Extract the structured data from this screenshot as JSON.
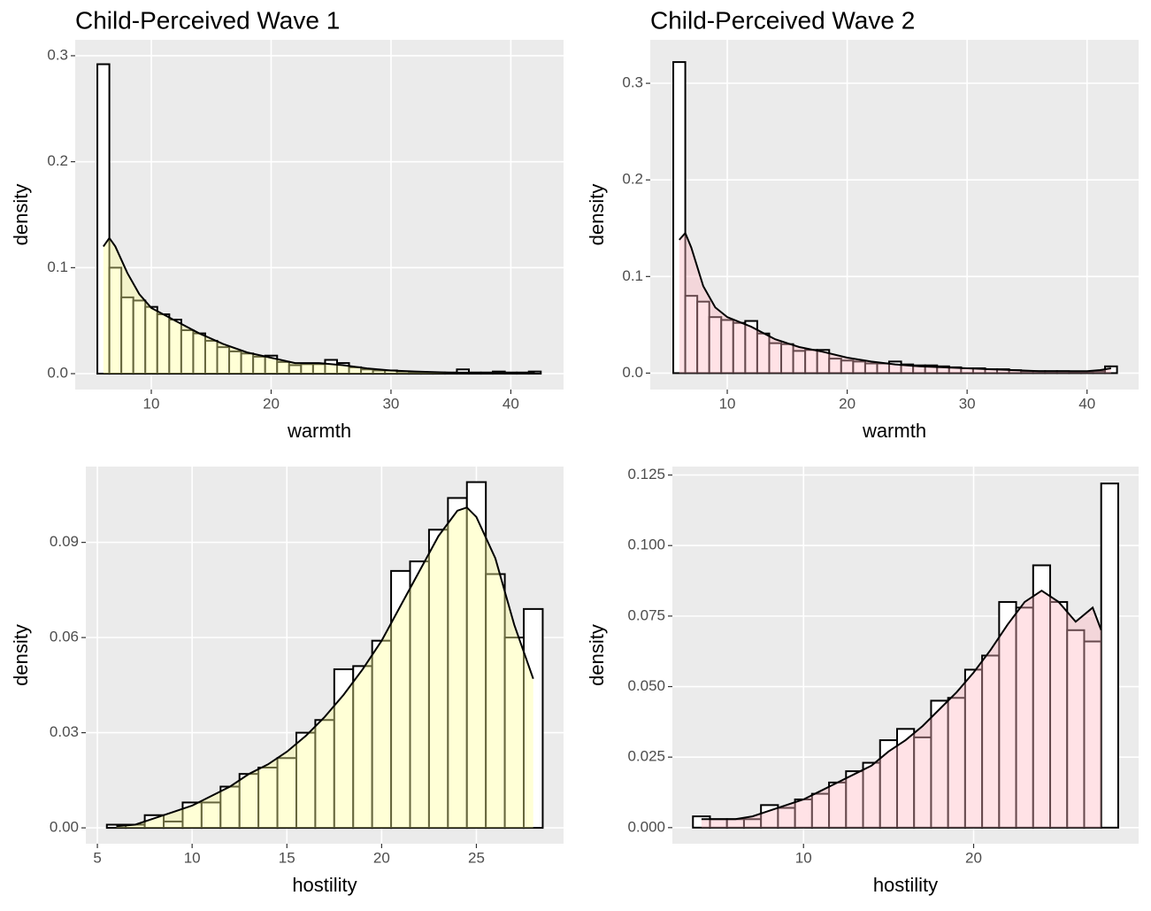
{
  "chart_data": [
    {
      "type": "histogram",
      "title": "Child-Perceived Wave 1",
      "xlabel": "warmth",
      "ylabel": "density",
      "bins": [
        5.5,
        6.5,
        7.5,
        8.5,
        9.5,
        10.5,
        11.5,
        12.5,
        13.5,
        14.5,
        15.5,
        16.5,
        17.5,
        18.5,
        19.5,
        20.5,
        21.5,
        22.5,
        23.5,
        24.5,
        25.5,
        26.5,
        27.5,
        28.5,
        29.5,
        30.5,
        31.5,
        32.5,
        33.5,
        34.5,
        35.5,
        36.5,
        37.5,
        38.5,
        39.5,
        40.5,
        41.5,
        42.5
      ],
      "values": [
        0.292,
        0.1,
        0.072,
        0.069,
        0.063,
        0.056,
        0.051,
        0.041,
        0.038,
        0.031,
        0.025,
        0.021,
        0.019,
        0.016,
        0.017,
        0.011,
        0.008,
        0.009,
        0.009,
        0.013,
        0.01,
        0.006,
        0.004,
        0.003,
        0.003,
        0.002,
        0.001,
        0.001,
        0.001,
        0.001,
        0.004,
        0.001,
        0.001,
        0.002,
        0.001,
        0.001,
        0.002
      ],
      "density": {
        "x": [
          6,
          6.5,
          7,
          8,
          9,
          10,
          12,
          14,
          16,
          18,
          20,
          22,
          24,
          26,
          28,
          30,
          32,
          35,
          38,
          42
        ],
        "y": [
          0.12,
          0.128,
          0.12,
          0.095,
          0.075,
          0.062,
          0.05,
          0.038,
          0.028,
          0.02,
          0.015,
          0.01,
          0.01,
          0.008,
          0.005,
          0.003,
          0.002,
          0.001,
          0.001,
          0.001
        ]
      },
      "bar_color": "#ffffff",
      "outline_color": "#000000",
      "density_color": "#ffff99",
      "xlim": [
        3.65,
        44.4
      ],
      "ylim": [
        -0.015,
        0.315
      ],
      "xticks": [
        10,
        20,
        30,
        40
      ],
      "yticks": [
        {
          "value": 0,
          "label": "0.0"
        },
        0.1,
        0.2,
        0.3
      ],
      "grid": true
    },
    {
      "type": "histogram",
      "title": "Child-Perceived Wave 2",
      "xlabel": "warmth",
      "ylabel": "density",
      "bins": [
        5.5,
        6.5,
        7.5,
        8.5,
        9.5,
        10.5,
        11.5,
        12.5,
        13.5,
        14.5,
        15.5,
        16.5,
        17.5,
        18.5,
        19.5,
        20.5,
        21.5,
        22.5,
        23.5,
        24.5,
        25.5,
        26.5,
        27.5,
        28.5,
        29.5,
        30.5,
        31.5,
        32.5,
        33.5,
        34.5,
        35.5,
        36.5,
        37.5,
        38.5,
        39.5,
        40.5,
        41.5,
        42.5
      ],
      "values": [
        0.322,
        0.08,
        0.074,
        0.058,
        0.055,
        0.052,
        0.054,
        0.041,
        0.031,
        0.03,
        0.023,
        0.024,
        0.024,
        0.015,
        0.013,
        0.012,
        0.01,
        0.01,
        0.012,
        0.009,
        0.008,
        0.008,
        0.007,
        0.006,
        0.005,
        0.005,
        0.004,
        0.004,
        0.003,
        0.002,
        0.002,
        0.002,
        0.002,
        0.001,
        0.001,
        0.002,
        0.007
      ],
      "density": {
        "x": [
          6,
          6.5,
          7,
          8,
          9,
          10,
          12,
          14,
          16,
          18,
          20,
          22,
          24,
          26,
          28,
          30,
          32,
          34,
          36,
          38,
          40,
          41,
          42
        ],
        "y": [
          0.138,
          0.145,
          0.13,
          0.09,
          0.068,
          0.058,
          0.048,
          0.035,
          0.027,
          0.022,
          0.016,
          0.012,
          0.009,
          0.007,
          0.006,
          0.005,
          0.004,
          0.003,
          0.002,
          0.002,
          0.002,
          0.003,
          0.005
        ]
      },
      "bar_color": "#ffffff",
      "outline_color": "#000000",
      "density_color": "#ffb6c1",
      "xlim": [
        3.58,
        44.3
      ],
      "ylim": [
        -0.017,
        0.345
      ],
      "xticks": [
        10,
        20,
        30,
        40
      ],
      "yticks": [
        {
          "value": 0,
          "label": "0.0"
        },
        0.1,
        0.2,
        0.3
      ],
      "grid": true
    },
    {
      "type": "histogram",
      "xlabel": "hostility",
      "ylabel": "density",
      "bins": [
        5.5,
        6.5,
        7.5,
        8.5,
        9.5,
        10.5,
        11.5,
        12.5,
        13.5,
        14.5,
        15.5,
        16.5,
        17.5,
        18.5,
        19.5,
        20.5,
        21.5,
        22.5,
        23.5,
        24.5,
        25.5,
        26.5,
        27.5,
        28.5
      ],
      "values": [
        0.001,
        0.001,
        0.004,
        0.002,
        0.008,
        0.008,
        0.013,
        0.017,
        0.019,
        0.022,
        0.03,
        0.034,
        0.05,
        0.051,
        0.059,
        0.081,
        0.084,
        0.094,
        0.104,
        0.109,
        0.08,
        0.06,
        0.069
      ],
      "density": {
        "x": [
          6,
          7,
          8,
          9,
          10,
          11,
          12,
          13,
          14,
          15,
          16,
          17,
          18,
          19,
          20,
          21,
          22,
          23,
          24,
          24.5,
          25,
          26,
          27,
          28
        ],
        "y": [
          0.0005,
          0.001,
          0.003,
          0.005,
          0.007,
          0.01,
          0.013,
          0.017,
          0.02,
          0.024,
          0.029,
          0.035,
          0.042,
          0.05,
          0.059,
          0.07,
          0.081,
          0.092,
          0.1,
          0.101,
          0.098,
          0.085,
          0.064,
          0.047
        ]
      },
      "bar_color": "#ffffff",
      "outline_color": "#000000",
      "density_color": "#ffff99",
      "xlim": [
        4.39,
        29.6
      ],
      "ylim": [
        -0.005,
        0.1139
      ],
      "xticks": [
        5,
        10,
        15,
        20,
        25
      ],
      "yticks": [
        {
          "value": 0,
          "label": "0.00"
        },
        0.03,
        0.06,
        0.09
      ],
      "grid": true
    },
    {
      "type": "histogram",
      "xlabel": "hostility",
      "ylabel": "density",
      "bins": [
        3.5,
        4.5,
        5.5,
        6.5,
        7.5,
        8.5,
        9.5,
        10.5,
        11.5,
        12.5,
        13.5,
        14.5,
        15.5,
        16.5,
        17.5,
        18.5,
        19.5,
        20.5,
        21.5,
        22.5,
        23.5,
        24.5,
        25.5,
        26.5,
        27.5,
        28.5
      ],
      "values": [
        0.004,
        0.003,
        0.003,
        0.003,
        0.008,
        0.007,
        0.01,
        0.012,
        0.016,
        0.02,
        0.023,
        0.031,
        0.035,
        0.032,
        0.045,
        0.046,
        0.056,
        0.061,
        0.08,
        0.078,
        0.093,
        0.08,
        0.07,
        0.066,
        0.122
      ],
      "density": {
        "x": [
          4,
          5,
          6,
          7,
          8,
          9,
          10,
          11,
          12,
          13,
          14,
          15,
          16,
          17,
          18,
          19,
          20,
          21,
          22,
          23,
          24,
          25,
          26,
          27,
          27.5
        ],
        "y": [
          0.003,
          0.003,
          0.003,
          0.004,
          0.006,
          0.008,
          0.01,
          0.013,
          0.016,
          0.019,
          0.022,
          0.027,
          0.031,
          0.036,
          0.042,
          0.048,
          0.055,
          0.063,
          0.072,
          0.08,
          0.084,
          0.08,
          0.073,
          0.078,
          0.07
        ]
      },
      "bar_color": "#ffffff",
      "outline_color": "#000000",
      "density_color": "#ffb6c1",
      "xlim": [
        2.29,
        29.7
      ],
      "ylim": [
        -0.0057,
        0.128
      ],
      "xticks": [
        10,
        20
      ],
      "yticks": [
        {
          "value": 0,
          "label": "0.000"
        },
        {
          "value": 0.025,
          "label": "0.025"
        },
        {
          "value": 0.05,
          "label": "0.050"
        },
        {
          "value": 0.075,
          "label": "0.075"
        },
        {
          "value": 0.1,
          "label": "0.100"
        },
        {
          "value": 0.125,
          "label": "0.125"
        }
      ],
      "grid": true
    }
  ]
}
